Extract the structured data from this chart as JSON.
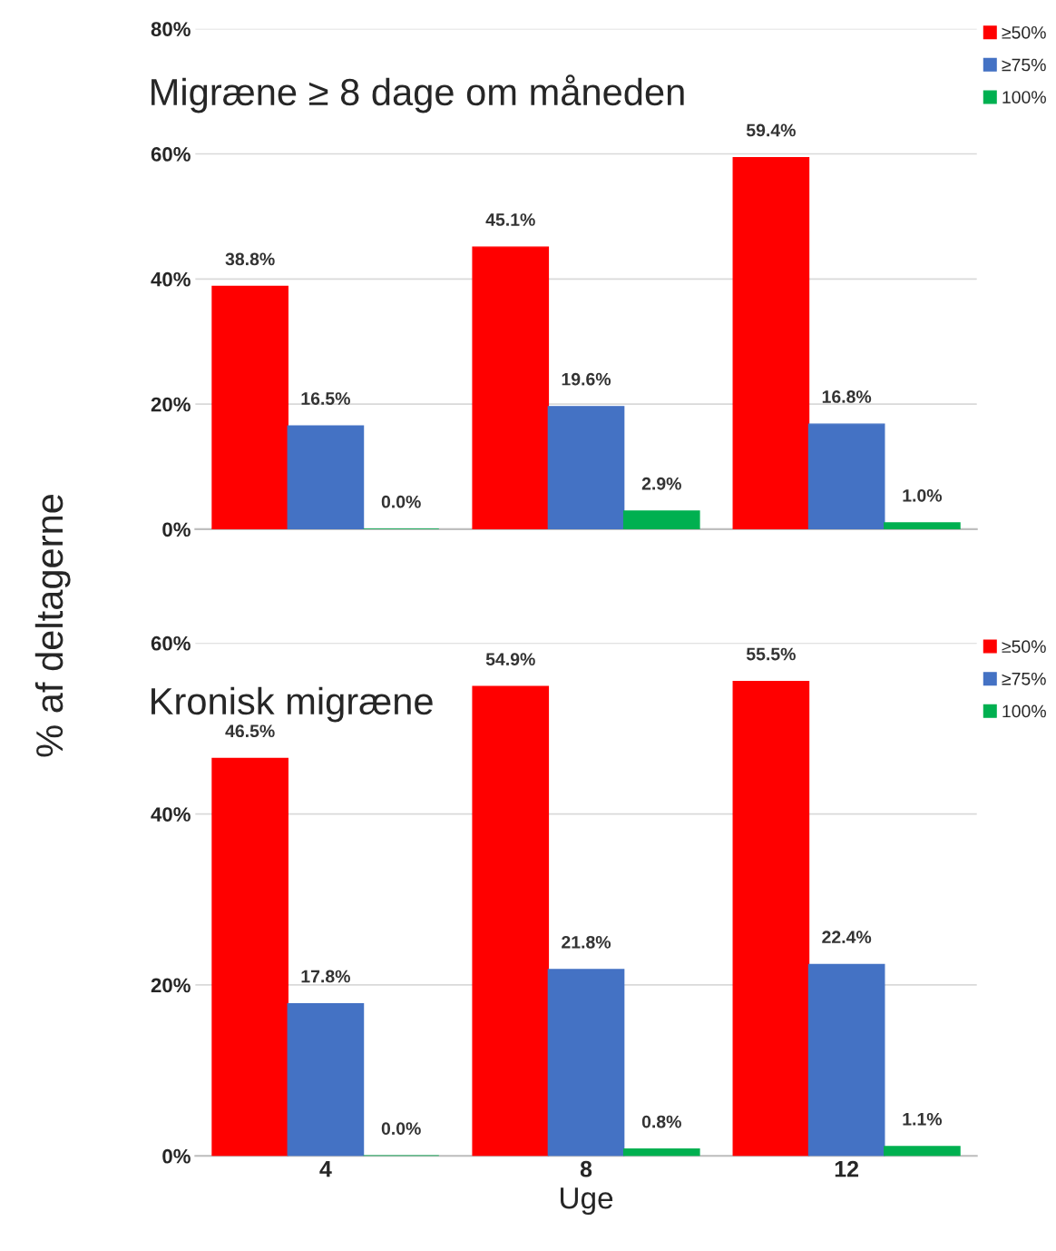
{
  "chart_data": [
    {
      "type": "bar",
      "title": "Migræne ≥ 8 dage om måneden",
      "ylabel": "% af deltagerne",
      "categories": [
        "4",
        "8",
        "12"
      ],
      "series": [
        {
          "name": "≥50%",
          "color": "#ff0000",
          "values": [
            38.8,
            45.1,
            59.4
          ],
          "value_labels": [
            "38.8%",
            "45.1%",
            "59.4%"
          ]
        },
        {
          "name": "≥75%",
          "color": "#4472c4",
          "values": [
            16.5,
            19.6,
            16.8
          ],
          "value_labels": [
            "16.5%",
            "19.6%",
            "16.8%"
          ]
        },
        {
          "name": "100%",
          "color": "#00b050",
          "values": [
            0.0,
            2.9,
            1.0
          ],
          "value_labels": [
            "0.0%",
            "2.9%",
            "1.0%"
          ]
        }
      ],
      "ylim": [
        0,
        80
      ],
      "yticks": [
        {
          "value": 0,
          "label": "0%"
        },
        {
          "value": 20,
          "label": "20%"
        },
        {
          "value": 40,
          "label": "40%"
        },
        {
          "value": 60,
          "label": "60%"
        },
        {
          "value": 80,
          "label": "80%"
        }
      ],
      "grid": "y",
      "legend": "top right",
      "tick_labels": "y"
    },
    {
      "type": "bar",
      "title": "Kronisk migræne",
      "xlabel": "Uge",
      "categories": [
        "4",
        "8",
        "12"
      ],
      "series": [
        {
          "name": "≥50%",
          "color": "#ff0000",
          "values": [
            46.5,
            54.9,
            55.5
          ],
          "value_labels": [
            "46.5%",
            "54.9%",
            "55.5%"
          ]
        },
        {
          "name": "≥75%",
          "color": "#4472c4",
          "values": [
            17.8,
            21.8,
            22.4
          ],
          "value_labels": [
            "17.8%",
            "21.8%",
            "22.4%"
          ]
        },
        {
          "name": "100%",
          "color": "#00b050",
          "values": [
            0.0,
            0.8,
            1.1
          ],
          "value_labels": [
            "0.0%",
            "0.8%",
            "1.1%"
          ]
        }
      ],
      "ylim": [
        0,
        60
      ],
      "yticks": [
        {
          "value": 0,
          "label": "0%"
        },
        {
          "value": 20,
          "label": "20%"
        },
        {
          "value": 40,
          "label": "40%"
        },
        {
          "value": 60,
          "label": "60%"
        }
      ],
      "grid": "y",
      "legend": "top right"
    }
  ]
}
